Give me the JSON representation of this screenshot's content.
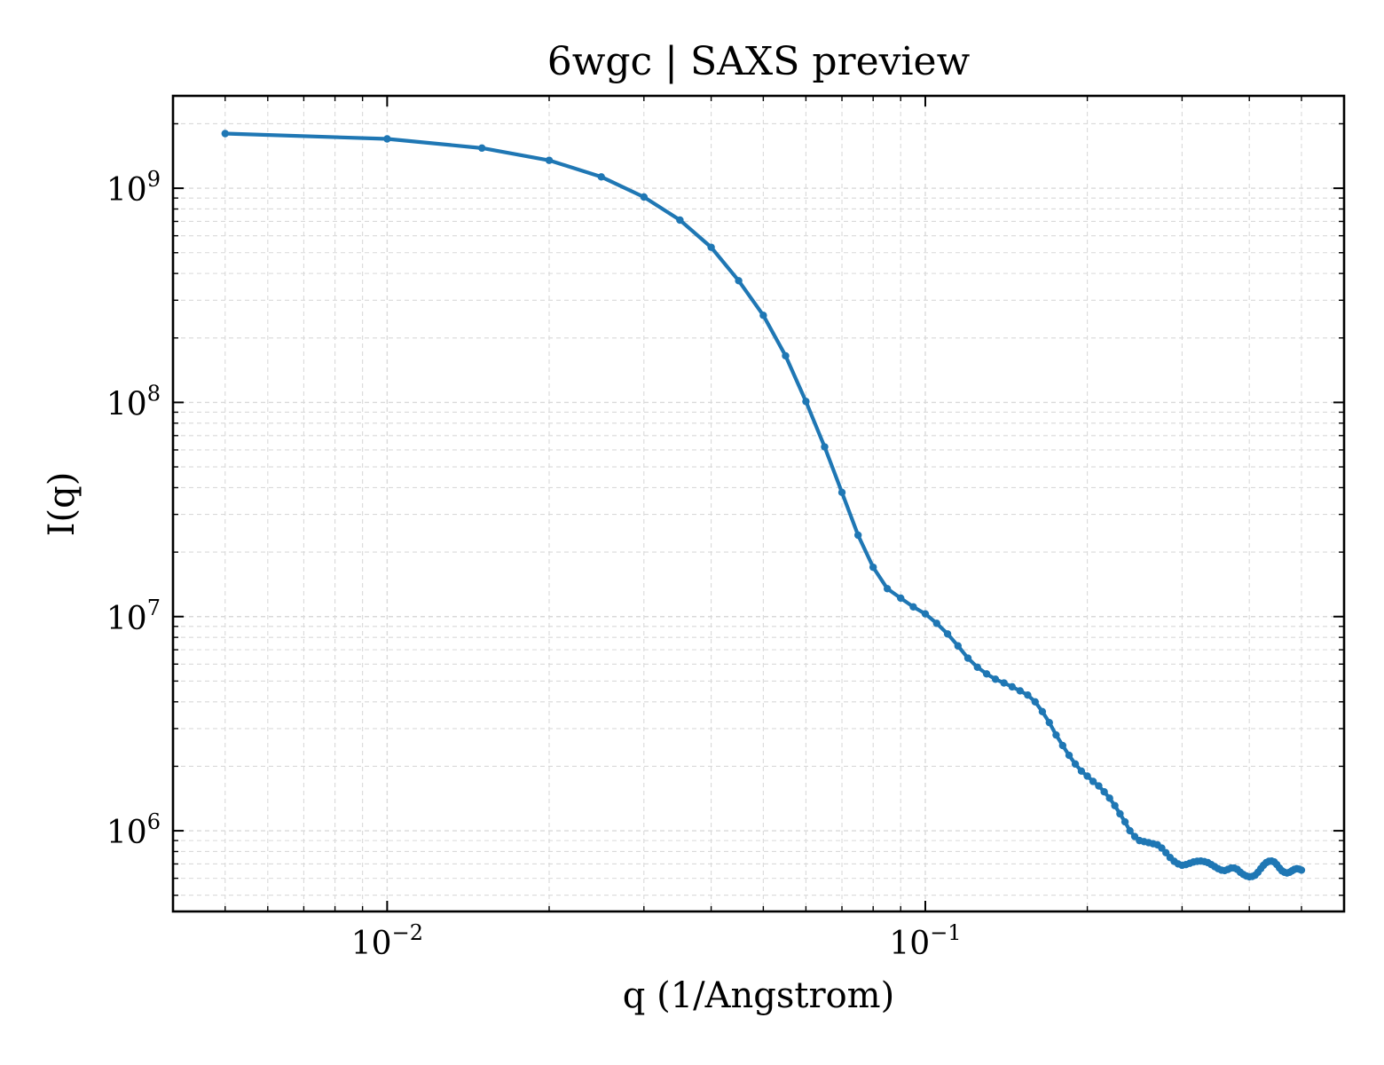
{
  "chart_data": {
    "type": "line",
    "title": "6wgc | SAXS preview",
    "xlabel": "q (1/Angstrom)",
    "ylabel": "I(q)",
    "x_scale": "log",
    "y_scale": "log",
    "xlim": [
      0.004,
      0.6
    ],
    "ylim": [
      420000,
      2700000000
    ],
    "grid": true,
    "legend": "none",
    "colors": {
      "line": "#1f77b4",
      "grid": "#d9d9d9",
      "axes": "#000000"
    },
    "x_ticks": [
      {
        "value": 0.01,
        "base": "10",
        "exp": "−2"
      },
      {
        "value": 0.1,
        "base": "10",
        "exp": "−1"
      }
    ],
    "y_ticks": [
      {
        "value": 1000000,
        "base": "10",
        "exp": "6"
      },
      {
        "value": 10000000,
        "base": "10",
        "exp": "7"
      },
      {
        "value": 100000000,
        "base": "10",
        "exp": "8"
      },
      {
        "value": 1000000000,
        "base": "10",
        "exp": "9"
      }
    ],
    "series": [
      {
        "x": [
          0.005,
          0.01,
          0.015,
          0.02,
          0.025,
          0.03,
          0.035,
          0.04,
          0.045,
          0.05,
          0.055,
          0.06,
          0.065,
          0.07,
          0.075,
          0.08,
          0.085,
          0.09,
          0.095,
          0.1,
          0.105,
          0.11,
          0.115,
          0.12,
          0.125,
          0.13,
          0.135,
          0.14,
          0.145,
          0.15,
          0.155,
          0.16,
          0.165,
          0.17,
          0.175,
          0.18,
          0.185,
          0.19,
          0.195,
          0.2,
          0.205,
          0.21,
          0.215,
          0.22,
          0.225,
          0.23,
          0.235,
          0.24,
          0.245,
          0.25,
          0.255,
          0.26,
          0.265,
          0.27,
          0.275,
          0.28,
          0.285,
          0.29,
          0.295,
          0.3,
          0.305,
          0.31,
          0.315,
          0.32,
          0.325,
          0.33,
          0.335,
          0.34,
          0.345,
          0.35,
          0.355,
          0.36,
          0.365,
          0.37,
          0.375,
          0.38,
          0.385,
          0.39,
          0.395,
          0.4,
          0.405,
          0.41,
          0.415,
          0.42,
          0.425,
          0.43,
          0.435,
          0.44,
          0.445,
          0.45,
          0.455,
          0.46,
          0.465,
          0.47,
          0.475,
          0.48,
          0.485,
          0.49,
          0.495,
          0.5
        ],
        "y": [
          1800000000,
          1700000000,
          1540000000,
          1350000000,
          1130000000,
          910000000,
          710000000,
          530000000,
          370000000,
          255000000,
          165000000,
          101000000,
          62000000,
          38000000,
          24000000,
          17000000,
          13500000,
          12200000,
          11100000,
          10300000,
          9300000,
          8300000,
          7300000,
          6400000,
          5800000,
          5400000,
          5100000,
          4900000,
          4700000,
          4500000,
          4300000,
          4000000,
          3600000,
          3200000,
          2800000,
          2500000,
          2250000,
          2050000,
          1900000,
          1800000,
          1700000,
          1620000,
          1520000,
          1420000,
          1310000,
          1200000,
          1100000,
          1000000,
          940000,
          900000,
          890000,
          880000,
          870000,
          860000,
          830000,
          790000,
          750000,
          720000,
          700000,
          690000,
          695000,
          705000,
          715000,
          720000,
          722000,
          718000,
          710000,
          695000,
          680000,
          665000,
          655000,
          652000,
          660000,
          670000,
          670000,
          660000,
          640000,
          625000,
          615000,
          610000,
          612000,
          620000,
          640000,
          665000,
          690000,
          710000,
          720000,
          722000,
          715000,
          695000,
          670000,
          650000,
          640000,
          635000,
          640000,
          650000,
          660000,
          665000,
          662000,
          655000
        ]
      }
    ]
  }
}
